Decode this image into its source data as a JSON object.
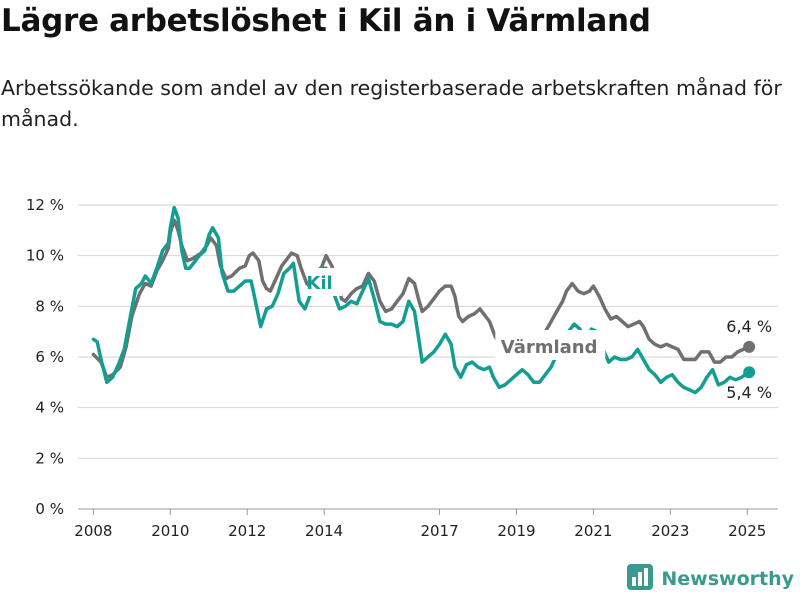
{
  "title": "Lägre arbetslöshet i Kil än i Värmland",
  "subtitle": "Arbetssökande som andel av den registerbaserade arbetskraften månad för månad.",
  "brand": {
    "name": "Newsworthy",
    "icon": "bar-chart-logo-icon"
  },
  "colors": {
    "Kil": "#149e93",
    "Värmland": "#707070",
    "grid": "#d6d6d6",
    "brand": "#3a9a8f"
  },
  "chart_data": {
    "type": "line",
    "title": "Lägre arbetslöshet i Kil än i Värmland",
    "xlabel": "",
    "ylabel": "",
    "xlim": [
      2007.6,
      2025.8
    ],
    "ylim": [
      0,
      12
    ],
    "grid": true,
    "x_ticks": [
      2008,
      2010,
      2012,
      2014,
      2017,
      2019,
      2021,
      2023,
      2025
    ],
    "y_ticks": [
      0,
      2,
      4,
      6,
      8,
      10,
      12
    ],
    "y_tick_labels": [
      "0 %",
      "2 %",
      "4 %",
      "6 %",
      "8 %",
      "10 %",
      "12 %"
    ],
    "series": [
      {
        "name": "Värmland",
        "label_position": "inline",
        "end_label": "6,4 %",
        "points": [
          [
            2008.0,
            6.1
          ],
          [
            2008.2,
            5.8
          ],
          [
            2008.35,
            5.2
          ],
          [
            2008.5,
            5.3
          ],
          [
            2008.7,
            5.6
          ],
          [
            2008.85,
            6.4
          ],
          [
            2009.0,
            7.6
          ],
          [
            2009.2,
            8.5
          ],
          [
            2009.35,
            8.9
          ],
          [
            2009.5,
            8.8
          ],
          [
            2009.65,
            9.4
          ],
          [
            2009.8,
            9.8
          ],
          [
            2009.95,
            10.3
          ],
          [
            2010.0,
            10.9
          ],
          [
            2010.1,
            11.4
          ],
          [
            2010.2,
            11.0
          ],
          [
            2010.3,
            10.4
          ],
          [
            2010.45,
            9.8
          ],
          [
            2010.6,
            9.9
          ],
          [
            2010.8,
            10.1
          ],
          [
            2010.95,
            10.4
          ],
          [
            2011.05,
            10.7
          ],
          [
            2011.2,
            10.4
          ],
          [
            2011.3,
            9.6
          ],
          [
            2011.45,
            9.1
          ],
          [
            2011.6,
            9.2
          ],
          [
            2011.8,
            9.5
          ],
          [
            2011.95,
            9.6
          ],
          [
            2012.05,
            10.0
          ],
          [
            2012.15,
            10.1
          ],
          [
            2012.3,
            9.8
          ],
          [
            2012.4,
            9.0
          ],
          [
            2012.5,
            8.7
          ],
          [
            2012.6,
            8.6
          ],
          [
            2012.75,
            9.1
          ],
          [
            2012.9,
            9.6
          ],
          [
            2013.05,
            9.9
          ],
          [
            2013.15,
            10.1
          ],
          [
            2013.3,
            10.0
          ],
          [
            2013.4,
            9.5
          ],
          [
            2013.55,
            8.9
          ],
          [
            2013.7,
            8.7
          ],
          [
            2013.85,
            9.1
          ],
          [
            2013.95,
            9.6
          ],
          [
            2014.05,
            10.0
          ],
          [
            2014.2,
            9.6
          ],
          [
            2014.35,
            8.9
          ],
          [
            2014.45,
            8.3
          ],
          [
            2014.55,
            8.2
          ],
          [
            2014.7,
            8.5
          ],
          [
            2014.85,
            8.7
          ],
          [
            2015.0,
            8.8
          ],
          [
            2015.15,
            9.3
          ],
          [
            2015.3,
            9.0
          ],
          [
            2015.45,
            8.2
          ],
          [
            2015.6,
            7.8
          ],
          [
            2015.75,
            7.9
          ],
          [
            2015.9,
            8.2
          ],
          [
            2016.05,
            8.5
          ],
          [
            2016.2,
            9.1
          ],
          [
            2016.35,
            8.9
          ],
          [
            2016.45,
            8.3
          ],
          [
            2016.55,
            7.8
          ],
          [
            2016.7,
            8.0
          ],
          [
            2016.85,
            8.3
          ],
          [
            2017.0,
            8.6
          ],
          [
            2017.15,
            8.8
          ],
          [
            2017.3,
            8.8
          ],
          [
            2017.4,
            8.4
          ],
          [
            2017.5,
            7.6
          ],
          [
            2017.6,
            7.4
          ],
          [
            2017.75,
            7.6
          ],
          [
            2017.9,
            7.7
          ],
          [
            2018.05,
            7.9
          ],
          [
            2018.2,
            7.6
          ],
          [
            2018.3,
            7.4
          ],
          [
            2018.45,
            6.8
          ],
          [
            2018.6,
            6.4
          ],
          [
            2018.75,
            6.5
          ],
          [
            2018.9,
            6.7
          ],
          [
            2019.05,
            6.8
          ],
          [
            2019.2,
            6.7
          ],
          [
            2019.3,
            6.7
          ],
          [
            2019.45,
            6.6
          ],
          [
            2019.6,
            6.7
          ],
          [
            2019.75,
            7.0
          ],
          [
            2019.9,
            7.4
          ],
          [
            2020.05,
            7.8
          ],
          [
            2020.2,
            8.2
          ],
          [
            2020.3,
            8.6
          ],
          [
            2020.45,
            8.9
          ],
          [
            2020.6,
            8.6
          ],
          [
            2020.75,
            8.5
          ],
          [
            2020.9,
            8.6
          ],
          [
            2021.0,
            8.8
          ],
          [
            2021.15,
            8.4
          ],
          [
            2021.3,
            7.9
          ],
          [
            2021.45,
            7.5
          ],
          [
            2021.6,
            7.6
          ],
          [
            2021.75,
            7.4
          ],
          [
            2021.9,
            7.2
          ],
          [
            2022.05,
            7.3
          ],
          [
            2022.2,
            7.4
          ],
          [
            2022.3,
            7.2
          ],
          [
            2022.45,
            6.7
          ],
          [
            2022.6,
            6.5
          ],
          [
            2022.75,
            6.4
          ],
          [
            2022.9,
            6.5
          ],
          [
            2023.05,
            6.4
          ],
          [
            2023.2,
            6.3
          ],
          [
            2023.35,
            5.9
          ],
          [
            2023.5,
            5.9
          ],
          [
            2023.65,
            5.9
          ],
          [
            2023.8,
            6.2
          ],
          [
            2024.0,
            6.2
          ],
          [
            2024.15,
            5.8
          ],
          [
            2024.3,
            5.8
          ],
          [
            2024.45,
            6.0
          ],
          [
            2024.6,
            6.0
          ],
          [
            2024.75,
            6.2
          ],
          [
            2024.9,
            6.3
          ],
          [
            2025.05,
            6.4
          ]
        ]
      },
      {
        "name": "Kil",
        "label_position": "inline",
        "end_label": "5,4 %",
        "points": [
          [
            2008.0,
            6.7
          ],
          [
            2008.1,
            6.6
          ],
          [
            2008.2,
            5.9
          ],
          [
            2008.35,
            5.0
          ],
          [
            2008.5,
            5.2
          ],
          [
            2008.65,
            5.7
          ],
          [
            2008.8,
            6.3
          ],
          [
            2008.95,
            7.5
          ],
          [
            2009.1,
            8.7
          ],
          [
            2009.25,
            8.9
          ],
          [
            2009.35,
            9.2
          ],
          [
            2009.5,
            8.9
          ],
          [
            2009.65,
            9.5
          ],
          [
            2009.8,
            10.2
          ],
          [
            2009.95,
            10.5
          ],
          [
            2010.0,
            11.1
          ],
          [
            2010.1,
            11.9
          ],
          [
            2010.2,
            11.5
          ],
          [
            2010.3,
            10.2
          ],
          [
            2010.4,
            9.5
          ],
          [
            2010.5,
            9.5
          ],
          [
            2010.6,
            9.7
          ],
          [
            2010.75,
            10.0
          ],
          [
            2010.9,
            10.2
          ],
          [
            2011.0,
            10.8
          ],
          [
            2011.1,
            11.1
          ],
          [
            2011.25,
            10.7
          ],
          [
            2011.35,
            9.3
          ],
          [
            2011.5,
            8.6
          ],
          [
            2011.65,
            8.6
          ],
          [
            2011.8,
            8.8
          ],
          [
            2011.95,
            9.0
          ],
          [
            2012.1,
            9.0
          ],
          [
            2012.2,
            8.3
          ],
          [
            2012.35,
            7.2
          ],
          [
            2012.5,
            7.9
          ],
          [
            2012.65,
            8.0
          ],
          [
            2012.8,
            8.5
          ],
          [
            2012.95,
            9.3
          ],
          [
            2013.1,
            9.5
          ],
          [
            2013.2,
            9.7
          ],
          [
            2013.35,
            8.2
          ],
          [
            2013.5,
            7.9
          ],
          [
            2013.65,
            8.5
          ],
          [
            2013.75,
            9.2
          ],
          [
            2013.9,
            9.5
          ],
          [
            2014.05,
            9.5
          ],
          [
            2014.15,
            9.0
          ],
          [
            2014.3,
            8.3
          ],
          [
            2014.4,
            7.9
          ],
          [
            2014.55,
            8.0
          ],
          [
            2014.7,
            8.2
          ],
          [
            2014.85,
            8.1
          ],
          [
            2015.0,
            8.6
          ],
          [
            2015.15,
            9.1
          ],
          [
            2015.3,
            8.3
          ],
          [
            2015.45,
            7.4
          ],
          [
            2015.6,
            7.3
          ],
          [
            2015.75,
            7.3
          ],
          [
            2015.9,
            7.2
          ],
          [
            2016.05,
            7.4
          ],
          [
            2016.2,
            8.2
          ],
          [
            2016.35,
            7.8
          ],
          [
            2016.45,
            6.8
          ],
          [
            2016.55,
            5.8
          ],
          [
            2016.7,
            6.0
          ],
          [
            2016.85,
            6.2
          ],
          [
            2017.0,
            6.5
          ],
          [
            2017.15,
            6.9
          ],
          [
            2017.3,
            6.5
          ],
          [
            2017.4,
            5.6
          ],
          [
            2017.55,
            5.2
          ],
          [
            2017.7,
            5.7
          ],
          [
            2017.85,
            5.8
          ],
          [
            2018.0,
            5.6
          ],
          [
            2018.15,
            5.5
          ],
          [
            2018.3,
            5.6
          ],
          [
            2018.4,
            5.2
          ],
          [
            2018.55,
            4.8
          ],
          [
            2018.7,
            4.9
          ],
          [
            2018.85,
            5.1
          ],
          [
            2019.0,
            5.3
          ],
          [
            2019.15,
            5.5
          ],
          [
            2019.3,
            5.3
          ],
          [
            2019.45,
            5.0
          ],
          [
            2019.6,
            5.0
          ],
          [
            2019.75,
            5.3
          ],
          [
            2019.9,
            5.6
          ],
          [
            2020.05,
            6.1
          ],
          [
            2020.2,
            6.5
          ],
          [
            2020.35,
            7.0
          ],
          [
            2020.5,
            7.3
          ],
          [
            2020.65,
            7.1
          ],
          [
            2020.8,
            6.6
          ],
          [
            2020.95,
            7.1
          ],
          [
            2021.1,
            7.0
          ],
          [
            2021.25,
            6.3
          ],
          [
            2021.4,
            5.8
          ],
          [
            2021.55,
            6.0
          ],
          [
            2021.7,
            5.9
          ],
          [
            2021.85,
            5.9
          ],
          [
            2022.0,
            6.0
          ],
          [
            2022.15,
            6.3
          ],
          [
            2022.3,
            5.9
          ],
          [
            2022.45,
            5.5
          ],
          [
            2022.6,
            5.3
          ],
          [
            2022.75,
            5.0
          ],
          [
            2022.9,
            5.2
          ],
          [
            2023.05,
            5.3
          ],
          [
            2023.2,
            5.0
          ],
          [
            2023.35,
            4.8
          ],
          [
            2023.5,
            4.7
          ],
          [
            2023.65,
            4.6
          ],
          [
            2023.8,
            4.8
          ],
          [
            2023.95,
            5.2
          ],
          [
            2024.1,
            5.5
          ],
          [
            2024.25,
            4.9
          ],
          [
            2024.4,
            5.0
          ],
          [
            2024.55,
            5.2
          ],
          [
            2024.7,
            5.1
          ],
          [
            2024.85,
            5.2
          ],
          [
            2025.05,
            5.4
          ]
        ]
      }
    ]
  }
}
